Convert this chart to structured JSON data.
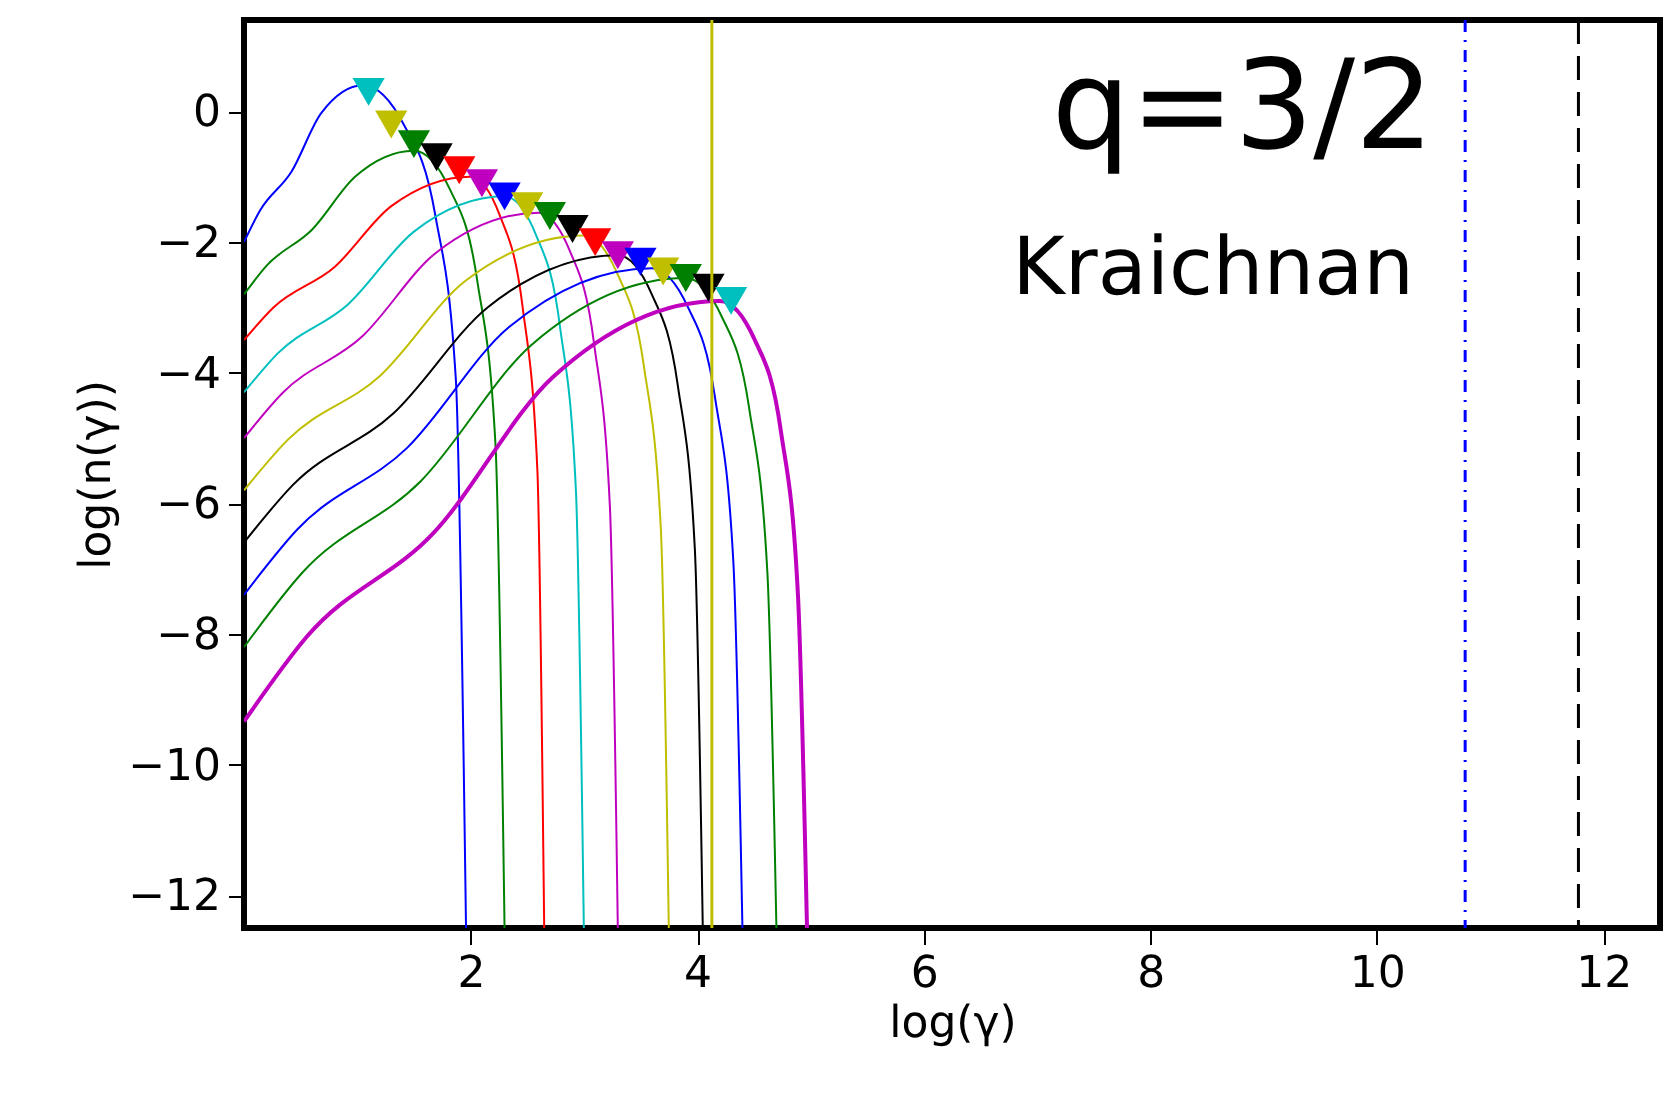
{
  "chart_data": {
    "type": "line",
    "xlabel": "log(γ)",
    "ylabel": "log(n(γ))",
    "xlim": [
      0,
      12.5
    ],
    "ylim": [
      -12.5,
      1.4
    ],
    "xticks": [
      2,
      4,
      6,
      8,
      10,
      12
    ],
    "yticks": [
      0,
      -2,
      -4,
      -6,
      -8,
      -10,
      -12
    ],
    "grid": false,
    "marker": "none",
    "line_style": "solid",
    "annotations": [
      "q=3/2",
      "Kraichnan"
    ],
    "ref_lines": [
      {
        "axis": "x",
        "value": 4.13,
        "color": "#bfbf00",
        "line_style": "solid"
      },
      {
        "axis": "x",
        "value": 10.78,
        "color": "#0000ff",
        "line_style": "dotted"
      },
      {
        "axis": "x",
        "value": 11.78,
        "color": "#000000",
        "line_style": "dashed"
      }
    ],
    "series": [
      {
        "color": "#0000ff",
        "x": [
          0,
          0.14,
          0.42,
          0.68,
          1.05,
          1.41,
          1.69,
          1.87,
          1.96
        ],
        "values": [
          -2.0,
          -1.52,
          -0.92,
          -0.03,
          0.4,
          -0.2,
          -1.6,
          -4.1,
          -12.5
        ]
      },
      {
        "color": "#008000",
        "x": [
          0,
          0.2,
          0.6,
          0.98,
          1.5,
          1.82,
          2.06,
          2.22,
          2.3
        ],
        "values": [
          -2.8,
          -2.36,
          -1.81,
          -1.0,
          -0.6,
          -1.2,
          -2.6,
          -5.1,
          -12.5
        ]
      },
      {
        "color": "#ff0000",
        "x": [
          0,
          0.26,
          0.8,
          1.3,
          2.0,
          2.26,
          2.46,
          2.59,
          2.65
        ],
        "values": [
          -3.5,
          -3.0,
          -2.38,
          -1.45,
          -1.0,
          -1.6,
          -3.0,
          -5.5,
          -12.5
        ]
      },
      {
        "color": "#00bfbf",
        "x": [
          0,
          0.3,
          0.92,
          1.5,
          2.3,
          2.58,
          2.79,
          2.93,
          3.0
        ],
        "values": [
          -4.3,
          -3.7,
          -2.95,
          -1.84,
          -1.3,
          -1.9,
          -3.3,
          -5.8,
          -12.5
        ]
      },
      {
        "color": "#bf00bf",
        "x": [
          0,
          0.34,
          1.04,
          1.69,
          2.6,
          2.88,
          3.09,
          3.23,
          3.3
        ],
        "values": [
          -5.0,
          -4.31,
          -3.45,
          -2.17,
          -1.55,
          -2.15,
          -3.55,
          -6.05,
          -12.5
        ]
      },
      {
        "color": "#bfbf00",
        "x": [
          0,
          0.39,
          1.2,
          1.95,
          3.0,
          3.3,
          3.53,
          3.68,
          3.75
        ],
        "values": [
          -5.8,
          -5.02,
          -4.05,
          -2.6,
          -1.9,
          -2.5,
          -3.9,
          -6.4,
          -12.5
        ]
      },
      {
        "color": "#000000",
        "x": [
          0,
          0.43,
          1.32,
          2.15,
          3.3,
          3.6,
          3.83,
          3.98,
          4.05
        ],
        "values": [
          -6.6,
          -5.72,
          -4.62,
          -3.0,
          -2.2,
          -2.8,
          -4.2,
          -6.7,
          -12.5
        ]
      },
      {
        "color": "#0000ff",
        "x": [
          0,
          0.47,
          1.44,
          2.34,
          3.6,
          3.92,
          4.16,
          4.32,
          4.4
        ],
        "values": [
          -7.4,
          -6.4,
          -5.15,
          -3.3,
          -2.4,
          -3.0,
          -4.4,
          -6.9,
          -12.5
        ]
      },
      {
        "color": "#008000",
        "x": [
          0,
          0.51,
          1.56,
          2.54,
          3.9,
          4.22,
          4.46,
          4.62,
          4.7
        ],
        "values": [
          -8.2,
          -7.07,
          -5.66,
          -3.57,
          -2.55,
          -3.15,
          -4.55,
          -7.05,
          -12.5
        ]
      },
      {
        "color": "#bf00bf",
        "x": [
          0,
          0.55,
          1.68,
          2.73,
          4.2,
          4.51,
          4.74,
          4.89,
          4.97
        ],
        "values": [
          -9.34,
          -8.05,
          -6.44,
          -4.06,
          -2.9,
          -3.5,
          -4.9,
          -7.4,
          -12.5
        ]
      },
      {
        "type": "scatter",
        "marker": "triangle",
        "x": [
          1.1,
          1.3,
          1.5,
          1.7,
          1.9,
          2.1,
          2.3,
          2.5,
          2.7,
          2.9,
          3.1,
          3.3,
          3.5,
          3.7,
          3.9,
          4.1,
          4.3
        ],
        "values": [
          0.3,
          -0.2,
          -0.5,
          -0.7,
          -0.9,
          -1.1,
          -1.3,
          -1.45,
          -1.6,
          -1.8,
          -2.0,
          -2.2,
          -2.3,
          -2.45,
          -2.55,
          -2.7,
          -2.9
        ],
        "colors": [
          "#00bfbf",
          "#bfbf00",
          "#008000",
          "#000000",
          "#ff0000",
          "#bf00bf",
          "#0000ff",
          "#bfbf00",
          "#008000",
          "#000000",
          "#ff0000",
          "#bf00bf",
          "#0000ff",
          "#bfbf00",
          "#008000",
          "#000000",
          "#00bfbf"
        ]
      }
    ]
  }
}
